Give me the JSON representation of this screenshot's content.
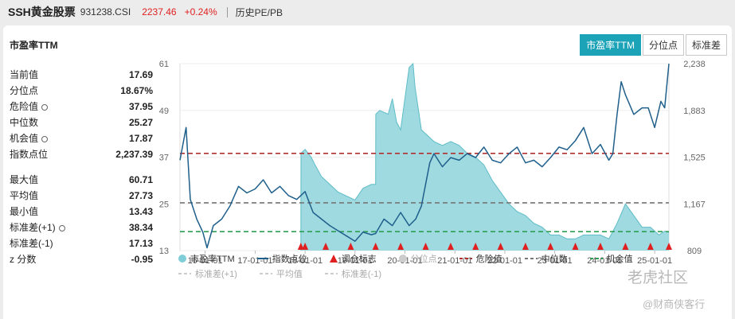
{
  "header": {
    "name": "SSH黄金股票",
    "code": "931238.CSI",
    "price": "2237.46",
    "change": "+0.24%",
    "history_tab": "历史PE/PB"
  },
  "panel_title": "市盈率TTM",
  "tabs": [
    {
      "label": "市盈率TTM",
      "active": true
    },
    {
      "label": "分位点",
      "active": false
    },
    {
      "label": "标准差",
      "active": false
    }
  ],
  "stats_a": [
    {
      "label": "当前值",
      "value": "17.69",
      "gear": false
    },
    {
      "label": "分位点",
      "value": "18.67%",
      "gear": false
    },
    {
      "label": "危险值",
      "value": "37.95",
      "gear": true
    },
    {
      "label": "中位数",
      "value": "25.27",
      "gear": false
    },
    {
      "label": "机会值",
      "value": "17.87",
      "gear": true
    },
    {
      "label": "指数点位",
      "value": "2,237.39",
      "gear": false
    }
  ],
  "stats_b": [
    {
      "label": "最大值",
      "value": "60.71",
      "gear": false
    },
    {
      "label": "平均值",
      "value": "27.73",
      "gear": false
    },
    {
      "label": "最小值",
      "value": "13.43",
      "gear": false
    },
    {
      "label": "标准差(+1)",
      "value": "38.34",
      "gear": true
    },
    {
      "label": "标准差(-1)",
      "value": "17.13",
      "gear": false
    },
    {
      "label": "z 分数",
      "value": "-0.95",
      "gear": false
    }
  ],
  "legend": {
    "row1": [
      "市盈率TTM",
      "指数点位",
      "调仓标志",
      "分位点",
      "危险值",
      "中位数",
      "机会值"
    ],
    "row2": [
      "标准差(+1)",
      "平均值",
      "标准差(-1)"
    ]
  },
  "watermark": {
    "line1": "老虎社区",
    "line2": "@财商侠客行"
  },
  "colors": {
    "pe_fill": "#7fcdd6",
    "pe_line": "#5fbcc7",
    "index_line": "#1f5f8b",
    "danger": "#b03030",
    "median": "#777777",
    "chance": "#2e9e55",
    "marker": "#e02020",
    "price_red": "#e02020",
    "tab_active": "#1ca3b8"
  },
  "chart_data": {
    "type": "area",
    "x_tick_labels": [
      "16-01-01",
      "17-01-01",
      "18-01-01",
      "19-01-01",
      "20-01-01",
      "21-01-01",
      "22-01-01",
      "23-01-01",
      "24-01-01",
      "25-01-01"
    ],
    "x_range": [
      "2015-07-01",
      "2025-04-15"
    ],
    "y_left": {
      "ticks": [
        "61",
        "49",
        "37",
        "25",
        "13"
      ],
      "range": [
        13,
        61
      ]
    },
    "y_right": {
      "ticks": [
        "2,238",
        "1,883",
        "1,525",
        "1,167",
        "809"
      ],
      "range": [
        809,
        2238
      ]
    },
    "reference_lines": {
      "danger": 37.95,
      "median": 25.27,
      "chance": 17.87
    },
    "series": [
      {
        "name": "市盈率TTM",
        "axis": "left",
        "x": [
          "2017-12-01",
          "2017-12-02",
          "2018-01-01",
          "2018-02-15",
          "2018-03-15",
          "2018-05-01",
          "2018-07-01",
          "2018-09-01",
          "2018-11-01",
          "2019-01-01",
          "2019-03-01",
          "2019-05-01",
          "2019-06-01",
          "2019-06-02",
          "2019-07-01",
          "2019-09-01",
          "2019-10-01",
          "2019-11-01",
          "2019-12-01",
          "2020-02-01",
          "2020-03-01",
          "2020-03-15",
          "2020-05-01",
          "2020-07-01",
          "2020-08-01",
          "2020-10-01",
          "2020-12-01",
          "2021-02-01",
          "2021-04-01",
          "2021-06-01",
          "2021-08-01",
          "2021-10-01",
          "2021-12-01",
          "2022-02-01",
          "2022-04-01",
          "2022-06-01",
          "2022-08-01",
          "2022-10-01",
          "2022-12-01",
          "2023-02-01",
          "2023-04-01",
          "2023-06-01",
          "2023-08-01",
          "2023-10-01",
          "2023-12-01",
          "2024-02-01",
          "2024-04-01",
          "2024-06-01",
          "2024-08-01",
          "2024-10-01",
          "2024-12-01",
          "2025-02-01",
          "2025-03-15",
          "2025-04-15"
        ],
        "y": [
          13,
          38,
          39,
          37,
          35,
          32,
          30,
          28,
          27,
          26,
          29,
          30,
          30,
          48,
          49,
          48,
          52,
          46,
          44,
          60,
          61,
          55,
          44,
          42,
          41,
          40,
          41,
          40,
          38,
          37,
          35,
          31,
          28,
          25,
          23,
          22,
          20,
          19,
          17,
          17,
          16,
          16,
          17,
          17,
          17,
          16,
          20,
          25,
          22,
          19,
          19,
          17,
          18,
          17.69
        ]
      },
      {
        "name": "指数点位",
        "axis": "right",
        "x": [
          "2015-07-01",
          "2015-08-15",
          "2015-09-15",
          "2015-11-01",
          "2015-12-15",
          "2016-01-15",
          "2016-03-01",
          "2016-05-01",
          "2016-07-01",
          "2016-09-01",
          "2016-11-01",
          "2017-01-01",
          "2017-03-01",
          "2017-05-01",
          "2017-07-01",
          "2017-09-01",
          "2017-11-01",
          "2018-01-01",
          "2018-03-01",
          "2018-05-01",
          "2018-07-01",
          "2018-09-01",
          "2018-11-01",
          "2019-01-01",
          "2019-03-01",
          "2019-05-01",
          "2019-06-01",
          "2019-08-01",
          "2019-10-01",
          "2019-12-01",
          "2020-02-01",
          "2020-03-20",
          "2020-05-01",
          "2020-07-01",
          "2020-08-01",
          "2020-10-01",
          "2020-12-01",
          "2021-02-01",
          "2021-04-01",
          "2021-06-01",
          "2021-08-01",
          "2021-10-01",
          "2021-12-01",
          "2022-02-01",
          "2022-04-01",
          "2022-06-01",
          "2022-08-01",
          "2022-10-01",
          "2022-12-01",
          "2023-02-01",
          "2023-04-01",
          "2023-06-01",
          "2023-08-01",
          "2023-10-01",
          "2023-12-01",
          "2024-02-01",
          "2024-03-01",
          "2024-04-01",
          "2024-05-01",
          "2024-06-01",
          "2024-08-01",
          "2024-10-01",
          "2024-11-15",
          "2025-01-01",
          "2025-02-15",
          "2025-03-15",
          "2025-04-15"
        ],
        "y": [
          1500,
          1750,
          1200,
          1050,
          950,
          830,
          1000,
          1050,
          1150,
          1300,
          1250,
          1280,
          1350,
          1250,
          1300,
          1230,
          1200,
          1260,
          1100,
          1050,
          1000,
          960,
          920,
          880,
          950,
          930,
          940,
          1050,
          1000,
          1100,
          1000,
          1050,
          1150,
          1480,
          1550,
          1450,
          1520,
          1500,
          1550,
          1520,
          1600,
          1500,
          1480,
          1550,
          1600,
          1480,
          1500,
          1450,
          1520,
          1600,
          1580,
          1650,
          1750,
          1550,
          1620,
          1500,
          1550,
          1850,
          2100,
          2000,
          1850,
          1900,
          1900,
          1750,
          1950,
          1900,
          2237.39
        ]
      }
    ],
    "rebalance_marker_dates": [
      "2017-12-01",
      "2018-01-01",
      "2018-06-01",
      "2018-12-01",
      "2019-06-01",
      "2019-12-01",
      "2020-06-01",
      "2020-12-01",
      "2021-06-01",
      "2021-12-01",
      "2022-06-01",
      "2022-12-01",
      "2023-06-01",
      "2023-12-01",
      "2024-06-01",
      "2024-12-01",
      "2025-04-15"
    ]
  }
}
